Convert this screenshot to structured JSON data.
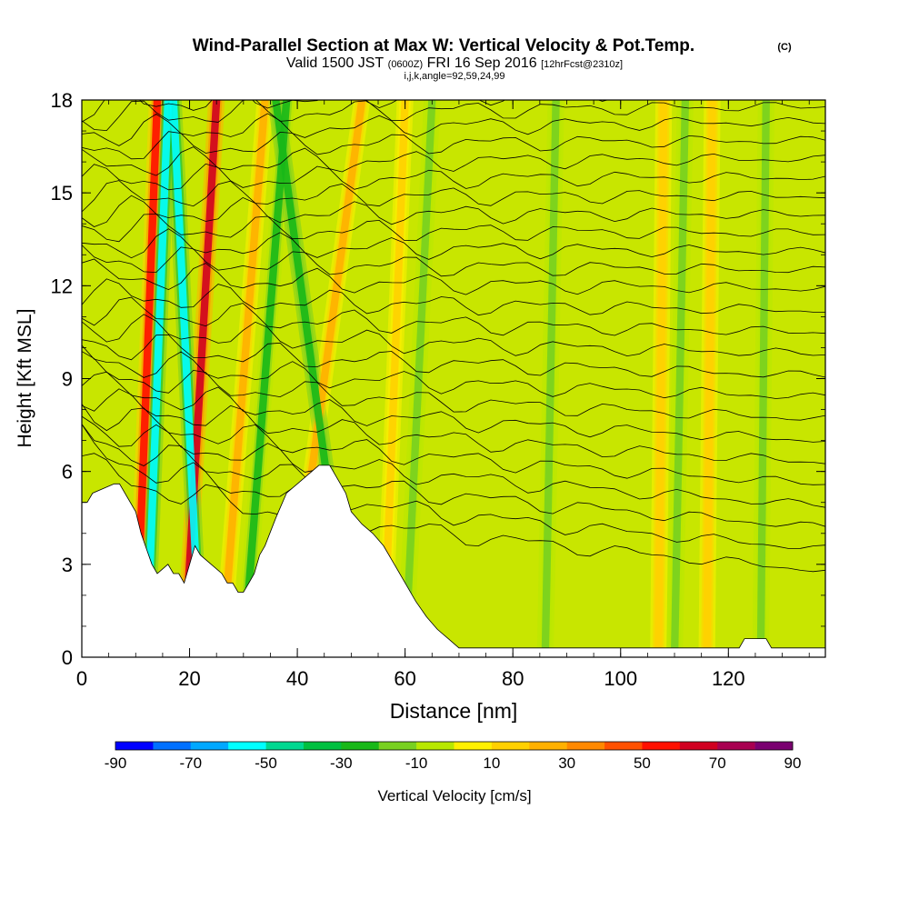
{
  "title": "Wind-Parallel Section at Max W: Vertical Velocity & Pot.Temp.",
  "title_copyright": "(C)",
  "subtitle": {
    "valid_prefix": "Valid 1500 JST",
    "zulu": "(0600Z)",
    "date": "FRI 16 Sep 2016",
    "forecast": "[12hrFcst@2310z]"
  },
  "grid_indices": "i,j,k,angle=92,59,24,99",
  "chart_data": {
    "type": "heatmap",
    "title": "Wind-Parallel Section at Max W: Vertical Velocity & Pot.Temp.",
    "xlabel": "Distance [nm]",
    "ylabel": "Height [Kft MSL]",
    "xlim": [
      0,
      138
    ],
    "ylim": [
      0,
      18
    ],
    "x_ticks": [
      0,
      20,
      40,
      60,
      80,
      100,
      120
    ],
    "y_ticks": [
      0,
      3,
      6,
      9,
      12,
      15,
      18
    ],
    "colorbar": {
      "label": "Vertical Velocity [cm/s]",
      "ticks": [
        -90,
        -70,
        -50,
        -30,
        -10,
        10,
        30,
        50,
        70,
        90
      ],
      "levels": [
        -90,
        -80,
        -70,
        -60,
        -50,
        -40,
        -30,
        -20,
        -10,
        0,
        10,
        20,
        30,
        40,
        50,
        60,
        70,
        80,
        90
      ],
      "colors": [
        "#0000ff",
        "#0070ff",
        "#00a8ff",
        "#00ffff",
        "#00d890",
        "#00c040",
        "#18b818",
        "#78d020",
        "#b8e800",
        "#fff000",
        "#ffd000",
        "#ffb000",
        "#ff8800",
        "#ff5000",
        "#ff1000",
        "#d00020",
        "#a80050",
        "#7a0070"
      ]
    },
    "terrain": {
      "x": [
        0,
        1,
        2,
        6,
        7,
        10,
        11,
        12,
        13,
        14,
        16,
        17,
        18,
        19,
        20,
        21,
        22,
        24,
        26,
        27,
        28,
        29,
        30,
        31,
        32,
        33,
        34,
        36,
        38,
        40,
        42,
        44,
        46,
        47,
        48,
        49,
        50,
        52,
        54,
        56,
        58,
        60,
        62,
        64,
        66,
        68,
        70,
        80,
        100,
        122,
        123,
        127,
        128,
        138
      ],
      "height_kft": [
        5.0,
        5.0,
        5.3,
        5.6,
        5.6,
        4.7,
        4.0,
        3.5,
        3.0,
        2.7,
        3.0,
        2.7,
        2.7,
        2.4,
        3.0,
        3.6,
        3.3,
        3.0,
        2.7,
        2.4,
        2.4,
        2.1,
        2.1,
        2.4,
        2.7,
        3.3,
        3.6,
        4.5,
        5.3,
        5.6,
        5.9,
        6.2,
        6.2,
        5.9,
        5.6,
        5.3,
        4.7,
        4.3,
        4.0,
        3.6,
        3.0,
        2.4,
        1.8,
        1.3,
        0.9,
        0.6,
        0.3,
        0.3,
        0.3,
        0.3,
        0.6,
        0.6,
        0.3,
        0.3
      ]
    },
    "updraft_bands": [
      {
        "x_bottom": 10,
        "x_top": 14,
        "w": 55
      },
      {
        "x_bottom": 19,
        "x_top": 25,
        "w": 60
      },
      {
        "x_bottom": 26,
        "x_top": 34,
        "w": 25
      },
      {
        "x_bottom": 38,
        "x_top": 52,
        "w": 25
      },
      {
        "x_bottom": 56,
        "x_top": 60,
        "w": 15
      },
      {
        "x_bottom": 107,
        "x_top": 108,
        "w": 18
      },
      {
        "x_bottom": 116,
        "x_top": 117,
        "w": 18
      }
    ],
    "downdraft_bands": [
      {
        "x_bottom": 12,
        "x_top": 16,
        "w": -55
      },
      {
        "x_bottom": 22,
        "x_top": 17,
        "w": -55
      },
      {
        "x_bottom": 30,
        "x_top": 38,
        "w": -22
      },
      {
        "x_bottom": 50,
        "x_top": 36,
        "w": -30
      },
      {
        "x_bottom": 60,
        "x_top": 65,
        "w": -12
      },
      {
        "x_bottom": 86,
        "x_top": 88,
        "w": -12
      },
      {
        "x_bottom": 110,
        "x_top": 112,
        "w": -12
      },
      {
        "x_bottom": 126,
        "x_top": 127,
        "w": -12
      }
    ],
    "theta_contours": {
      "start_kft": [
        6.5,
        7.0,
        7.4,
        7.8,
        8.2,
        8.6,
        9.0,
        9.4,
        9.8,
        10.3,
        10.8,
        11.3,
        11.8,
        12.4,
        12.9,
        13.4,
        13.9,
        14.4,
        14.9,
        15.4,
        15.9,
        16.4,
        16.9,
        17.4,
        17.8
      ],
      "end_kft": [
        2.8,
        3.5,
        4.2,
        4.9,
        5.6,
        6.3,
        7.0,
        7.7,
        8.4,
        9.1,
        9.8,
        10.5,
        11.2,
        11.9,
        12.5,
        13.1,
        13.7,
        14.3,
        14.9,
        15.5,
        16.1,
        16.7,
        17.3,
        17.8,
        18.3
      ]
    }
  }
}
